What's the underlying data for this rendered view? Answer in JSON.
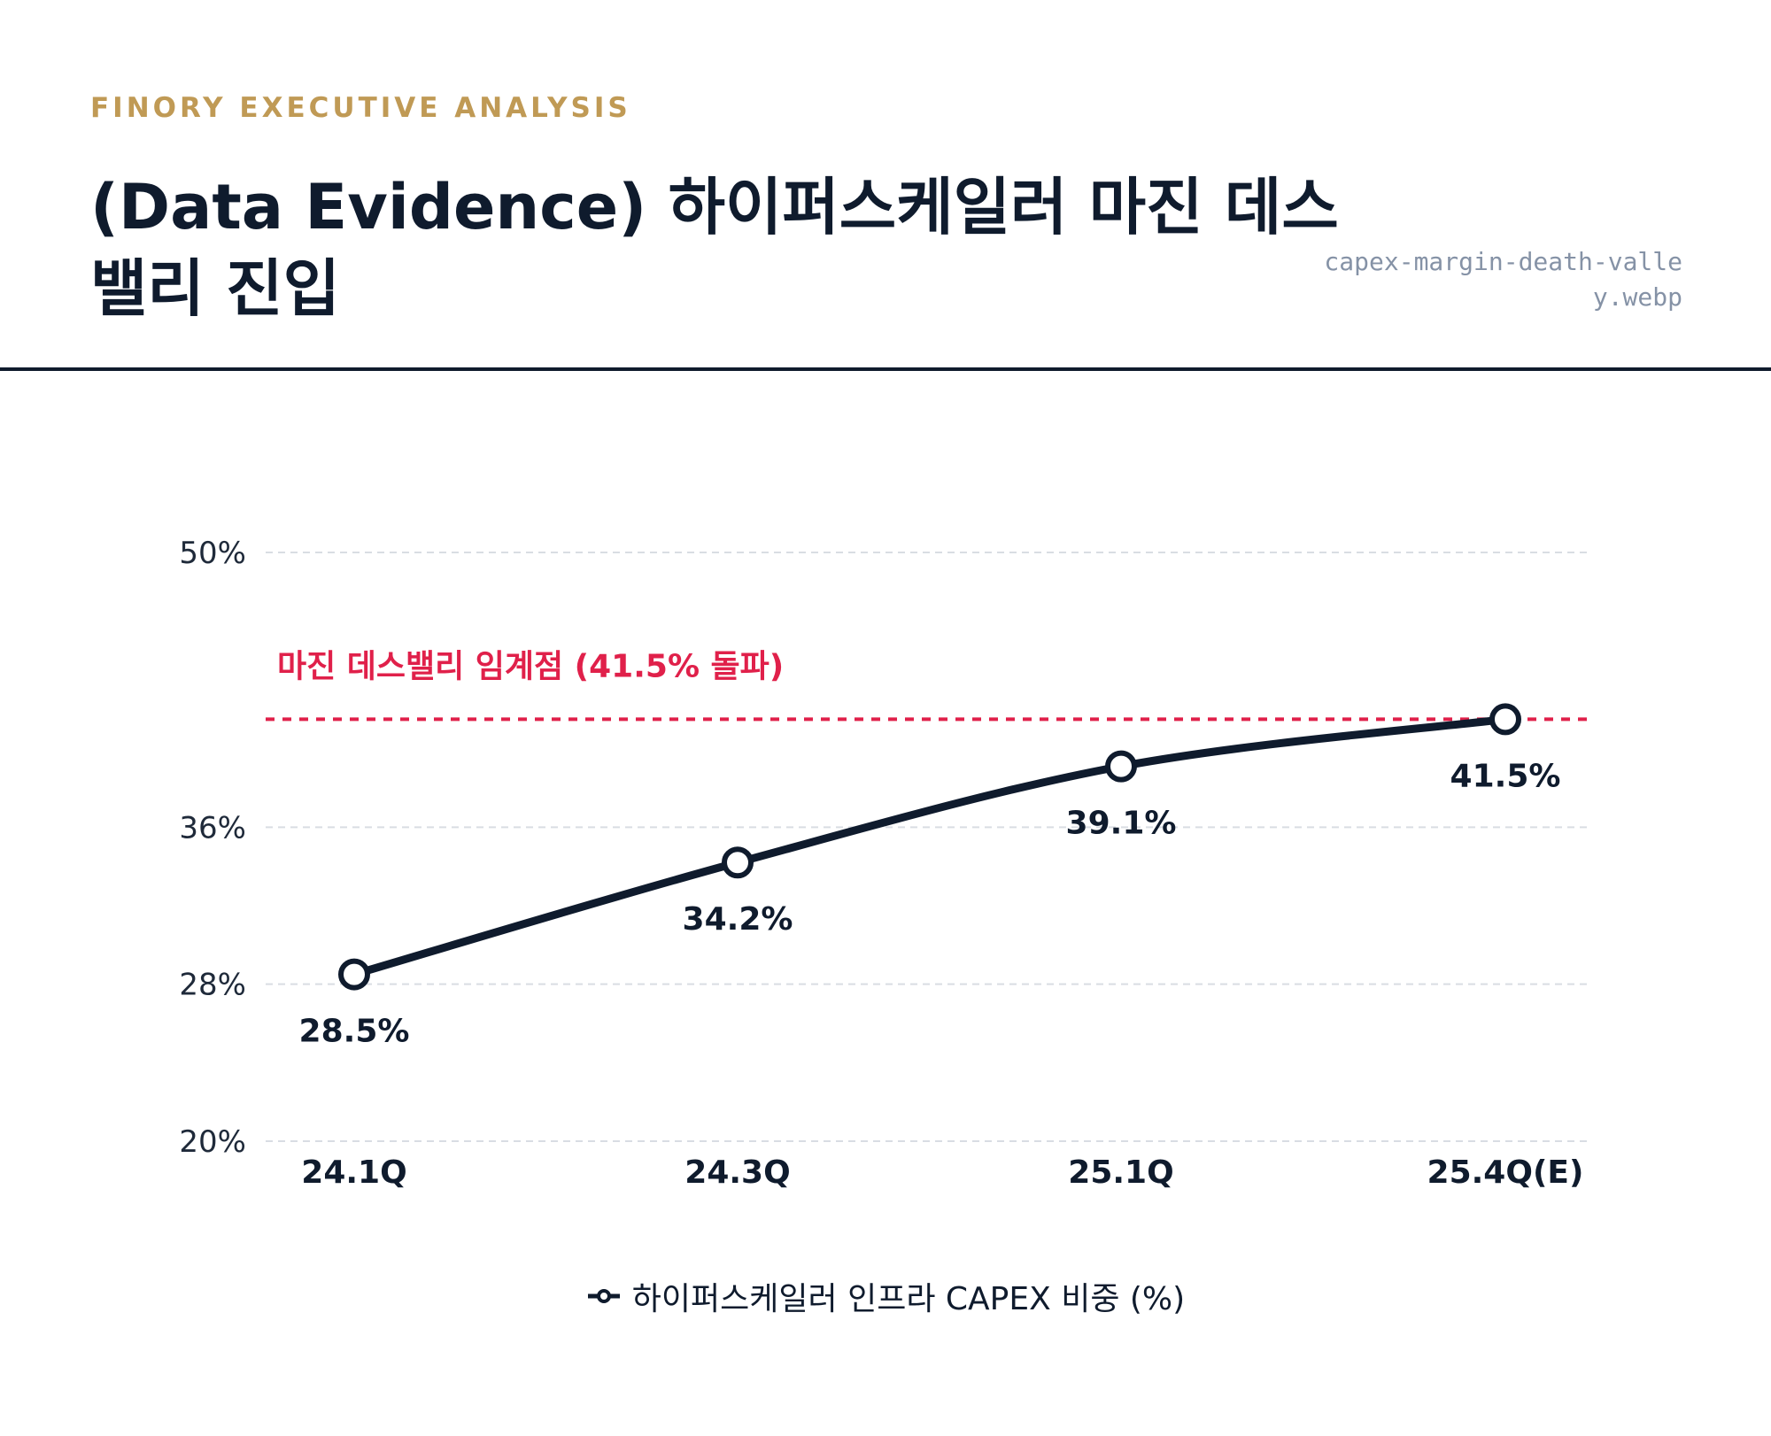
{
  "header": {
    "kicker": "FINORY EXECUTIVE ANALYSIS",
    "title": "(Data Evidence) 하이퍼스케일러 마진 데스밸리 진입",
    "filename": "capex-margin-death-valley.webp"
  },
  "colors": {
    "line": "#0f1b2d",
    "threshold": "#e0204a",
    "grid": "#d9dde3",
    "kicker": "#c09a55"
  },
  "chart_data": {
    "type": "line",
    "categories": [
      "24.1Q",
      "24.3Q",
      "25.1Q",
      "25.4Q(E)"
    ],
    "series": [
      {
        "name": "하이퍼스케일러 인프라 CAPEX 비중 (%)",
        "values": [
          28.5,
          34.2,
          39.1,
          41.5
        ],
        "labels": [
          "28.5%",
          "34.2%",
          "39.1%",
          "41.5%"
        ]
      }
    ],
    "y_ticks": [
      20,
      28,
      36,
      50
    ],
    "y_tick_labels": [
      "20%",
      "28%",
      "36%",
      "50%"
    ],
    "ylim": [
      20,
      50
    ],
    "grid": true,
    "legend_position": "bottom-center",
    "threshold": {
      "value": 41.5,
      "label": "마진 데스밸리 임계점 (41.5% 돌파)"
    }
  }
}
